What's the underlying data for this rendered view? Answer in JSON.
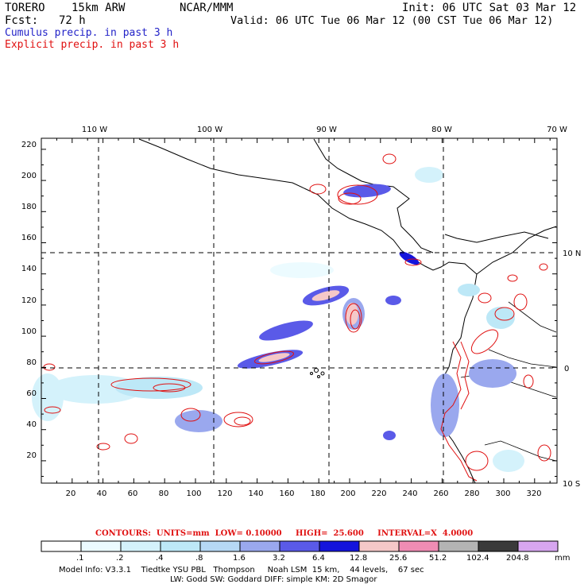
{
  "header": {
    "model": "TORERO",
    "resolution": "15km ARW",
    "center": "NCAR/MMM",
    "init": "Init: 06 UTC Sat 03 Mar 12",
    "fcst_label": "Fcst:",
    "fcst_value": "72 h",
    "valid": "Valid: 06 UTC Tue 06 Mar 12 (00 CST Tue 06 Mar 12)",
    "field1": "Cumulus precip. in past 3 h",
    "field2": "Explicit precip. in past 3 h",
    "field1_color": "#2323c8",
    "field2_color": "#e01010"
  },
  "map": {
    "lon_labels": [
      "110 W",
      "100 W",
      "90 W",
      "80 W",
      "70 W"
    ],
    "lat_labels": [
      "10 N",
      "0",
      "10 S"
    ],
    "y_ticks": [
      "220",
      "200",
      "180",
      "160",
      "140",
      "120",
      "100",
      "80",
      "60",
      "40",
      "20"
    ],
    "x_ticks": [
      "20",
      "40",
      "60",
      "80",
      "100",
      "120",
      "140",
      "160",
      "180",
      "200",
      "220",
      "240",
      "260",
      "280",
      "300",
      "320"
    ]
  },
  "contours": {
    "text": "CONTOURS:  UNITS=mm  LOW= 0.10000     HIGH=  25.600     INTERVAL=X  4.0000"
  },
  "colorbar": {
    "labels": [
      ".1",
      ".2",
      ".4",
      ".8",
      "1.6",
      "3.2",
      "6.4",
      "12.8",
      "25.6",
      "51.2",
      "102.4",
      "204.8"
    ],
    "unit": "mm",
    "colors": [
      "#ffffff",
      "#ecfbff",
      "#d4f2fb",
      "#bde8f7",
      "#b6d8f5",
      "#9aa8ee",
      "#5a5ae8",
      "#1414dc",
      "#f5c8c8",
      "#f08cb4",
      "#b4b4b4",
      "#3a3a3a",
      "#d7a6f0"
    ]
  },
  "footer": {
    "line1": "Model Info: V3.3.1    Tiedtke YSU PBL   Thompson     Noah LSM  15 km,    44 levels,    67 sec",
    "line2": "LW: Godd SW: Goddard DIFF: simple KM: 2D Smagor"
  }
}
